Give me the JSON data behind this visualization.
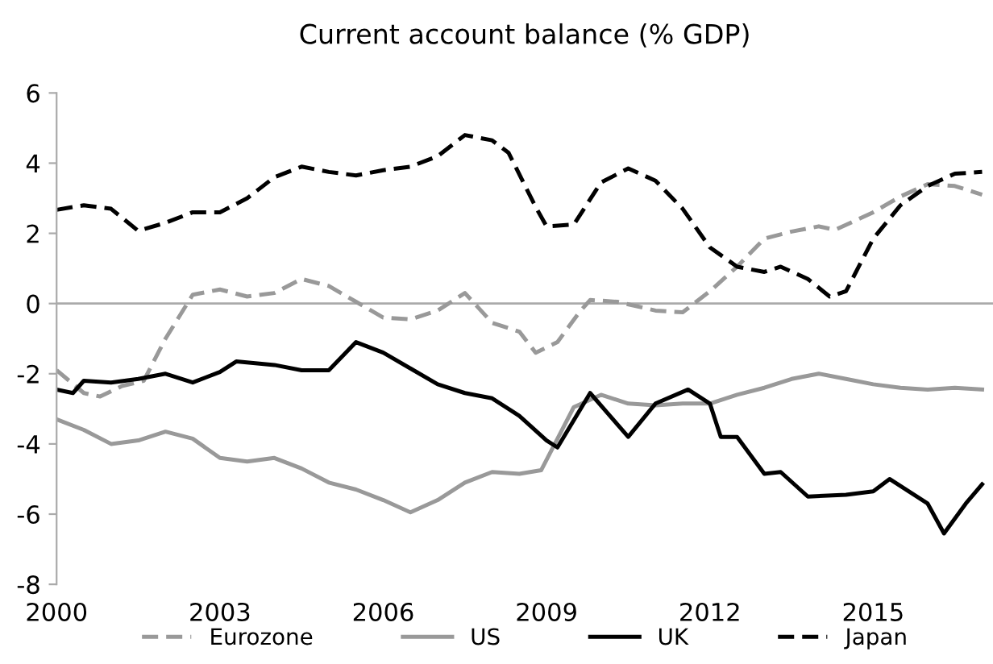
{
  "chart_data": {
    "type": "line",
    "title": "Current account balance (% GDP)",
    "xlim": [
      2000,
      2017.2
    ],
    "xticks": [
      2000,
      2003,
      2006,
      2009,
      2012,
      2015
    ],
    "ylim": [
      -8,
      6
    ],
    "yticks": [
      -8,
      -6,
      -4,
      -2,
      0,
      2,
      4,
      6
    ],
    "grid": false,
    "legend": "bottom",
    "marker": "none",
    "ref_lines": [
      {
        "axis": "y",
        "value": 0,
        "color": "#aaaaaa",
        "line_style": "solid"
      }
    ],
    "series": [
      {
        "name": "Eurozone",
        "color": "#999999",
        "line_style": "dashed",
        "x": [
          2000,
          2000.5,
          2000.8,
          2001.2,
          2001.6,
          2002,
          2002.5,
          2003,
          2003.5,
          2004,
          2004.5,
          2005,
          2005.5,
          2006,
          2006.5,
          2007,
          2007.5,
          2008,
          2008.5,
          2008.8,
          2009.2,
          2009.6,
          2009.8,
          2010.3,
          2011,
          2011.5,
          2012,
          2012.5,
          2013,
          2013.5,
          2014,
          2014.3,
          2015,
          2015.5,
          2016,
          2016.5,
          2017
        ],
        "values": [
          -1.9,
          -2.55,
          -2.65,
          -2.35,
          -2.2,
          -1.0,
          0.25,
          0.4,
          0.2,
          0.3,
          0.7,
          0.5,
          0.05,
          -0.4,
          -0.45,
          -0.2,
          0.3,
          -0.55,
          -0.8,
          -1.4,
          -1.1,
          -0.25,
          0.1,
          0.05,
          -0.2,
          -0.25,
          0.35,
          1.05,
          1.85,
          2.05,
          2.2,
          2.1,
          2.6,
          3.05,
          3.4,
          3.35,
          3.1
        ]
      },
      {
        "name": "US",
        "color": "#999999",
        "line_style": "solid",
        "x": [
          2000,
          2000.5,
          2001,
          2001.5,
          2002,
          2002.5,
          2003,
          2003.5,
          2004,
          2004.5,
          2005,
          2005.5,
          2006,
          2006.5,
          2007,
          2007.5,
          2008,
          2008.5,
          2008.9,
          2009.3,
          2009.5,
          2010,
          2010.5,
          2011,
          2011.5,
          2012,
          2012.5,
          2013,
          2013.5,
          2014,
          2014.5,
          2015,
          2015.5,
          2016,
          2016.5,
          2017
        ],
        "values": [
          -3.3,
          -3.6,
          -4.0,
          -3.9,
          -3.65,
          -3.85,
          -4.4,
          -4.5,
          -4.4,
          -4.7,
          -5.1,
          -5.3,
          -5.6,
          -5.95,
          -5.6,
          -5.1,
          -4.8,
          -4.85,
          -4.75,
          -3.55,
          -2.95,
          -2.6,
          -2.85,
          -2.9,
          -2.85,
          -2.85,
          -2.6,
          -2.4,
          -2.15,
          -2.0,
          -2.15,
          -2.3,
          -2.4,
          -2.45,
          -2.4,
          -2.45
        ]
      },
      {
        "name": "UK",
        "color": "#000000",
        "line_style": "solid",
        "x": [
          2000,
          2000.3,
          2000.5,
          2001,
          2001.5,
          2002,
          2002.5,
          2003,
          2003.3,
          2004,
          2004.5,
          2005,
          2005.5,
          2006,
          2006.5,
          2007,
          2007.5,
          2008,
          2008.5,
          2009,
          2009.2,
          2009.8,
          2010.5,
          2011,
          2011.6,
          2012,
          2012.2,
          2012.5,
          2013,
          2013.3,
          2013.8,
          2014.5,
          2015,
          2015.3,
          2016,
          2016.3,
          2016.7,
          2017
        ],
        "values": [
          -2.45,
          -2.55,
          -2.2,
          -2.25,
          -2.15,
          -2.0,
          -2.25,
          -1.95,
          -1.65,
          -1.75,
          -1.9,
          -1.9,
          -1.1,
          -1.4,
          -1.85,
          -2.3,
          -2.55,
          -2.7,
          -3.2,
          -3.9,
          -4.1,
          -2.55,
          -3.8,
          -2.85,
          -2.45,
          -2.85,
          -3.8,
          -3.8,
          -4.85,
          -4.8,
          -5.5,
          -5.45,
          -5.35,
          -5.0,
          -5.7,
          -6.55,
          -5.7,
          -5.15
        ]
      },
      {
        "name": "Japan",
        "color": "#000000",
        "line_style": "dashed",
        "x": [
          2000,
          2000.5,
          2001,
          2001.5,
          2002,
          2002.5,
          2003,
          2003.5,
          2004,
          2004.5,
          2005,
          2005.5,
          2006,
          2006.5,
          2007,
          2007.5,
          2008,
          2008.3,
          2008.8,
          2009,
          2009.5,
          2010,
          2010.5,
          2011,
          2011.5,
          2012,
          2012.5,
          2013,
          2013.3,
          2013.8,
          2014.2,
          2014.5,
          2015,
          2015.5,
          2016,
          2016.5,
          2017
        ],
        "values": [
          2.67,
          2.8,
          2.7,
          2.07,
          2.3,
          2.6,
          2.6,
          3.0,
          3.6,
          3.9,
          3.75,
          3.65,
          3.8,
          3.9,
          4.2,
          4.8,
          4.65,
          4.3,
          2.75,
          2.2,
          2.25,
          3.45,
          3.85,
          3.5,
          2.7,
          1.6,
          1.05,
          0.9,
          1.05,
          0.7,
          0.2,
          0.35,
          1.85,
          2.8,
          3.35,
          3.7,
          3.75
        ]
      }
    ]
  }
}
